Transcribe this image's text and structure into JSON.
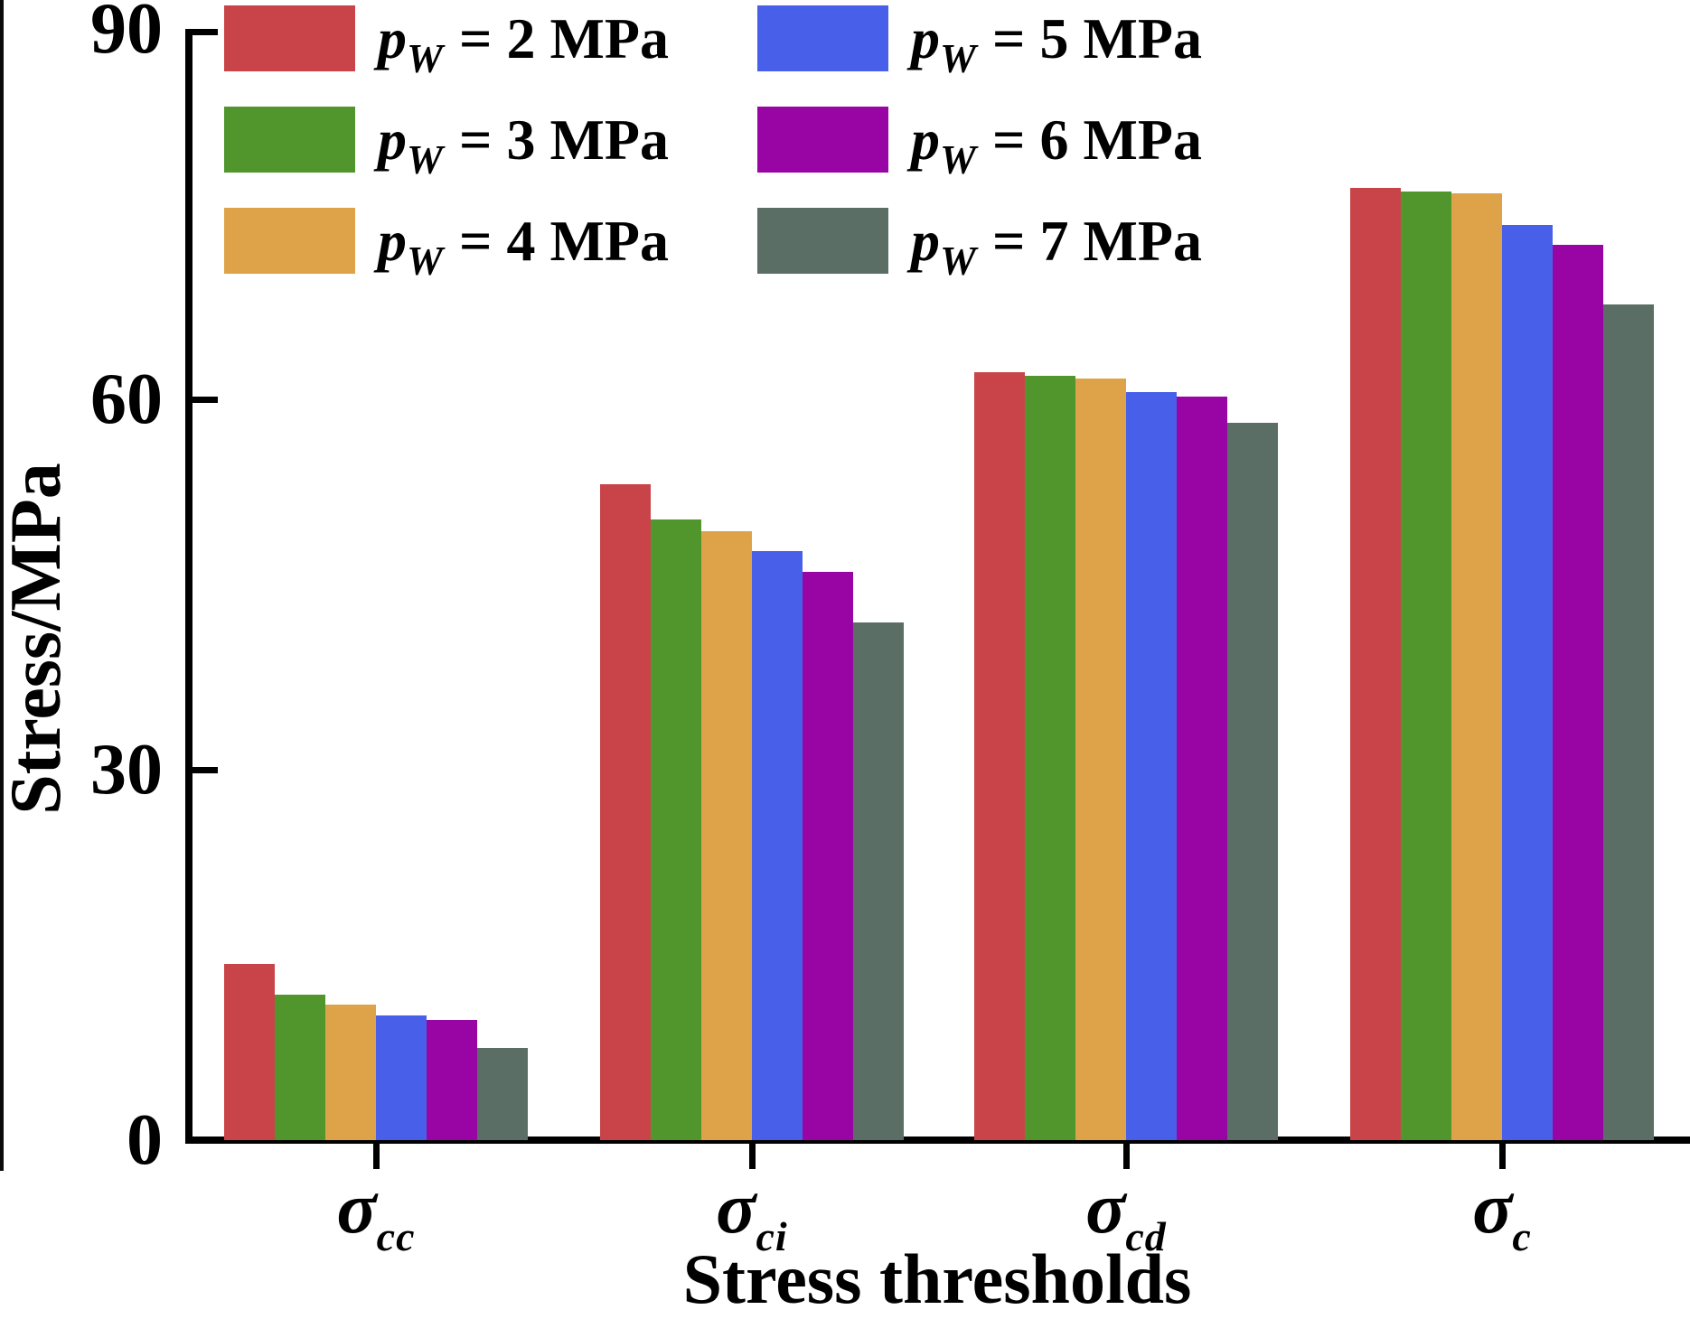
{
  "figure": {
    "background": "#ffffff",
    "ylabel": "Stress/MPa",
    "xlabel": "Stress thresholds"
  },
  "legend": {
    "symbol": "p",
    "symbol_sub": "W",
    "items": [
      {
        "rest": "= 2 MPa",
        "color": "#c94449"
      },
      {
        "rest": "= 3 MPa",
        "color": "#50962d"
      },
      {
        "rest": "= 4 MPa",
        "color": "#dea348"
      },
      {
        "rest": "= 5 MPa",
        "color": "#4860e9"
      },
      {
        "rest": "= 6 MPa",
        "color": "#9905a5"
      },
      {
        "rest": "= 7 MPa",
        "color": "#5b6e65"
      }
    ]
  },
  "chart_data": {
    "type": "bar",
    "title": "",
    "xlabel": "Stress thresholds",
    "ylabel": "Stress/MPa",
    "ylim": [
      0,
      90
    ],
    "yticks": [
      0,
      30,
      60,
      90
    ],
    "grid": false,
    "legend_position": "upper-left",
    "categories": [
      {
        "base": "σ",
        "sub": "cc"
      },
      {
        "base": "σ",
        "sub": "ci"
      },
      {
        "base": "σ",
        "sub": "cd"
      },
      {
        "base": "σ",
        "sub": "c"
      }
    ],
    "series": [
      {
        "name": "pW = 2 MPa",
        "color": "#c94449",
        "values": [
          14.3,
          53.1,
          62.2,
          77.1
        ]
      },
      {
        "name": "pW = 3 MPa",
        "color": "#50962d",
        "values": [
          11.8,
          50.3,
          61.9,
          76.8
        ]
      },
      {
        "name": "pW = 4 MPa",
        "color": "#dea348",
        "values": [
          11.0,
          49.3,
          61.7,
          76.7
        ]
      },
      {
        "name": "pW = 5 MPa",
        "color": "#4860e9",
        "values": [
          10.1,
          47.7,
          60.6,
          74.1
        ]
      },
      {
        "name": "pW = 6 MPa",
        "color": "#9905a5",
        "values": [
          9.7,
          46.0,
          60.2,
          72.5
        ]
      },
      {
        "name": "pW = 7 MPa",
        "color": "#5b6e65",
        "values": [
          7.5,
          41.9,
          58.1,
          67.7
        ]
      }
    ]
  }
}
